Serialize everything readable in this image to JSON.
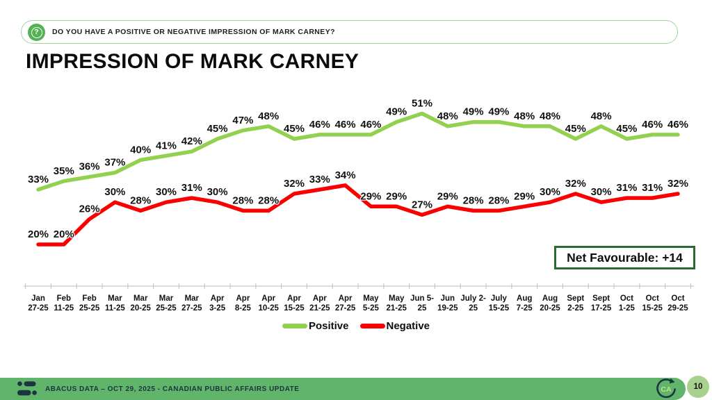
{
  "header": {
    "question": "DO YOU HAVE A POSITIVE OR NEGATIVE IMPRESSION OF MARK CARNEY?"
  },
  "title": "IMPRESSION OF MARK CARNEY",
  "chart_data": {
    "type": "line",
    "categories": [
      [
        "Jan",
        "27-25"
      ],
      [
        "Feb",
        "11-25"
      ],
      [
        "Feb",
        "25-25"
      ],
      [
        "Mar",
        "11-25"
      ],
      [
        "Mar",
        "20-25"
      ],
      [
        "Mar",
        "25-25"
      ],
      [
        "Mar",
        "27-25"
      ],
      [
        "Apr",
        "3-25"
      ],
      [
        "Apr",
        "8-25"
      ],
      [
        "Apr",
        "10-25"
      ],
      [
        "Apr",
        "15-25"
      ],
      [
        "Apr",
        "21-25"
      ],
      [
        "Apr",
        "27-25"
      ],
      [
        "May",
        "5-25"
      ],
      [
        "May",
        "21-25"
      ],
      [
        "Jun 5-",
        "25"
      ],
      [
        "Jun",
        "19-25"
      ],
      [
        "July 2-",
        "25"
      ],
      [
        "July",
        "15-25"
      ],
      [
        "Aug",
        "7-25"
      ],
      [
        "Aug",
        "20-25"
      ],
      [
        "Sept",
        "2-25"
      ],
      [
        "Sept",
        "17-25"
      ],
      [
        "Oct",
        "1-25"
      ],
      [
        "Oct",
        "15-25"
      ],
      [
        "Oct",
        "29-25"
      ]
    ],
    "series": [
      {
        "name": "Positive",
        "color": "#92d050",
        "values": [
          33,
          35,
          36,
          37,
          40,
          41,
          42,
          45,
          47,
          48,
          45,
          46,
          46,
          46,
          49,
          51,
          48,
          49,
          49,
          48,
          48,
          45,
          48,
          45,
          46,
          46
        ]
      },
      {
        "name": "Negative",
        "color": "#fb0000",
        "values": [
          20,
          20,
          26,
          30,
          28,
          30,
          31,
          30,
          28,
          28,
          32,
          33,
          34,
          29,
          29,
          27,
          29,
          28,
          28,
          29,
          30,
          32,
          30,
          31,
          31,
          32
        ]
      }
    ],
    "value_suffix": "%",
    "ylim": [
      10,
      56
    ],
    "grid": false,
    "legend_position": "bottom",
    "annotation": "Net Favourable: +14"
  },
  "net_box": {
    "label": "Net Favourable: +14"
  },
  "footer": {
    "text": "ABACUS DATA – OCT 29, 2025 - CANADIAN PUBLIC AFFAIRS UPDATE",
    "badge_label": "CA",
    "page_number": "10"
  },
  "colors": {
    "positive-green": "#92d050",
    "negative-red": "#fb0000",
    "net-box-border": "#2a6b33",
    "footer-green": "#61b56a",
    "banner-border": "#9fd49f",
    "icon-green": "#55b155",
    "page-badge-green": "#a9d18e",
    "logo-dark": "#1b3441",
    "axis-gray": "#c8c8c8",
    "text-dark": "#121212"
  }
}
